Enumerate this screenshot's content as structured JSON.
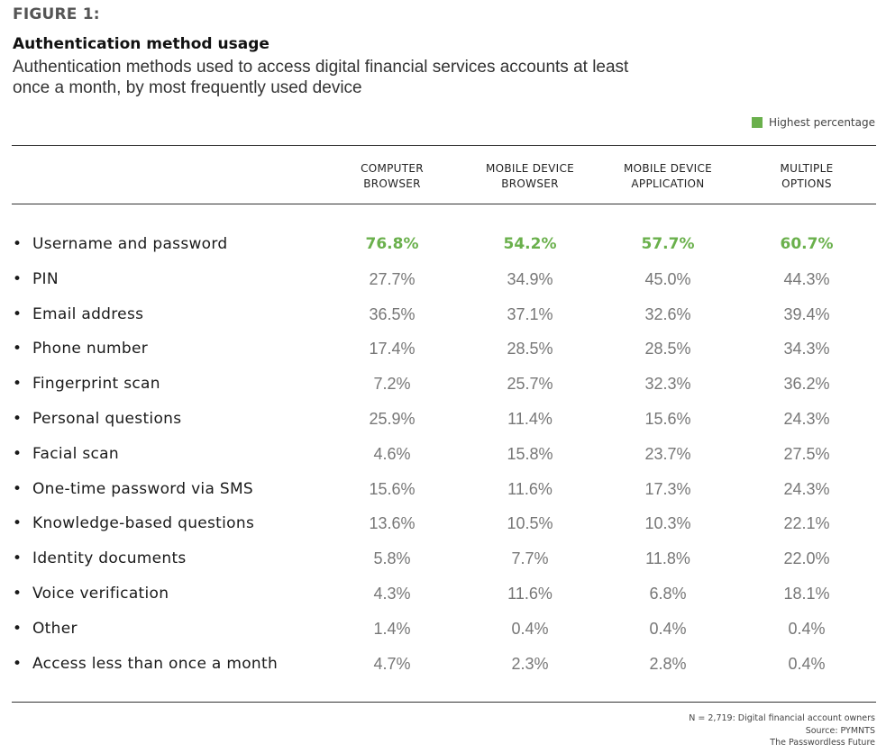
{
  "figure_label": "FIGURE 1:",
  "title": "Authentication method usage",
  "subtitle": "Authentication methods used to access digital financial services accounts at least once a month, by most frequently used device",
  "legend": {
    "label": "Highest percentage",
    "color": "#6ab04c"
  },
  "chart_data": {
    "type": "table",
    "title": "Authentication method usage",
    "subtitle": "Authentication methods used to access digital financial services accounts at least once a month, by most frequently used device",
    "columns": [
      {
        "line1": "COMPUTER",
        "line2": "BROWSER"
      },
      {
        "line1": "MOBILE DEVICE",
        "line2": "BROWSER"
      },
      {
        "line1": "MOBILE DEVICE",
        "line2": "APPLICATION"
      },
      {
        "line1": "MULTIPLE",
        "line2": "OPTIONS"
      }
    ],
    "highlight_color": "#6ab04c",
    "rows": [
      {
        "bullet": "•",
        "label": "Username and password",
        "values": [
          "76.8%",
          "54.2%",
          "57.7%",
          "60.7%"
        ],
        "highlight": [
          true,
          true,
          true,
          true
        ]
      },
      {
        "bullet": "•",
        "label": "PIN",
        "values": [
          "27.7%",
          "34.9%",
          "45.0%",
          "44.3%"
        ],
        "highlight": [
          false,
          false,
          false,
          false
        ]
      },
      {
        "bullet": "•",
        "label": "Email address",
        "values": [
          "36.5%",
          "37.1%",
          "32.6%",
          "39.4%"
        ],
        "highlight": [
          false,
          false,
          false,
          false
        ]
      },
      {
        "bullet": "•",
        "label": "Phone number",
        "values": [
          "17.4%",
          "28.5%",
          "28.5%",
          "34.3%"
        ],
        "highlight": [
          false,
          false,
          false,
          false
        ]
      },
      {
        "bullet": "•",
        "label": "Fingerprint scan",
        "values": [
          "7.2%",
          "25.7%",
          "32.3%",
          "36.2%"
        ],
        "highlight": [
          false,
          false,
          false,
          false
        ]
      },
      {
        "bullet": "•",
        "label": "Personal questions",
        "values": [
          "25.9%",
          "11.4%",
          "15.6%",
          "24.3%"
        ],
        "highlight": [
          false,
          false,
          false,
          false
        ]
      },
      {
        "bullet": "•",
        "label": "Facial scan",
        "values": [
          "4.6%",
          "15.8%",
          "23.7%",
          "27.5%"
        ],
        "highlight": [
          false,
          false,
          false,
          false
        ]
      },
      {
        "bullet": "•",
        "label": "One-time password via SMS",
        "values": [
          "15.6%",
          "11.6%",
          "17.3%",
          "24.3%"
        ],
        "highlight": [
          false,
          false,
          false,
          false
        ]
      },
      {
        "bullet": "•",
        "label": "Knowledge-based questions",
        "values": [
          "13.6%",
          "10.5%",
          "10.3%",
          "22.1%"
        ],
        "highlight": [
          false,
          false,
          false,
          false
        ]
      },
      {
        "bullet": "•",
        "label": "Identity documents",
        "values": [
          "5.8%",
          "7.7%",
          "11.8%",
          "22.0%"
        ],
        "highlight": [
          false,
          false,
          false,
          false
        ]
      },
      {
        "bullet": "•",
        "label": "Voice verification",
        "values": [
          "4.3%",
          "11.6%",
          "6.8%",
          "18.1%"
        ],
        "highlight": [
          false,
          false,
          false,
          false
        ]
      },
      {
        "bullet": "•",
        "label": "Other",
        "values": [
          "1.4%",
          "0.4%",
          "0.4%",
          "0.4%"
        ],
        "highlight": [
          false,
          false,
          false,
          false
        ]
      },
      {
        "bullet": "•",
        "label": "Access less than once a month",
        "values": [
          "4.7%",
          "2.3%",
          "2.8%",
          "0.4%"
        ],
        "highlight": [
          false,
          false,
          false,
          false
        ]
      }
    ]
  },
  "footnotes": {
    "sample": "N = 2,719: Digital financial account owners",
    "source": "Source: PYMNTS",
    "report": "The Passwordless Future"
  }
}
